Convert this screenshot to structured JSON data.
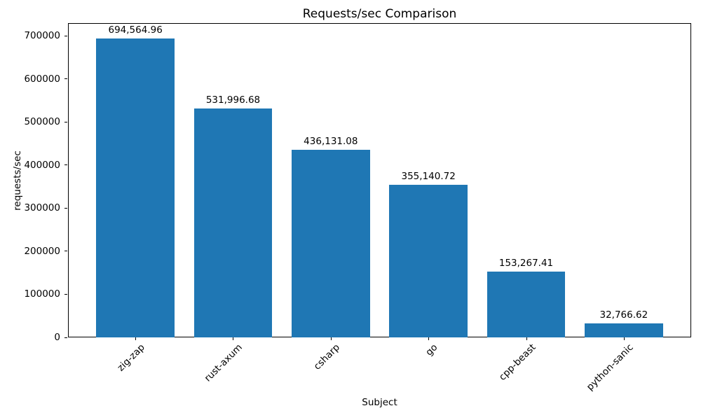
{
  "chart_data": {
    "type": "bar",
    "title": "Requests/sec Comparison",
    "xlabel": "Subject",
    "ylabel": "requests/sec",
    "categories": [
      "zig-zap",
      "rust-axum",
      "csharp",
      "go",
      "cpp-beast",
      "python-sanic"
    ],
    "values": [
      694564.96,
      531996.68,
      436131.08,
      355140.72,
      153267.41,
      32766.62
    ],
    "bar_labels": [
      "694,564.96",
      "531,996.68",
      "436,131.08",
      "355,140.72",
      "153,267.41",
      "32,766.62"
    ],
    "y_ticks": [
      0,
      100000,
      200000,
      300000,
      400000,
      500000,
      600000,
      700000
    ],
    "y_tick_labels": [
      "0",
      "100000",
      "200000",
      "300000",
      "400000",
      "500000",
      "600000",
      "700000"
    ],
    "ylim": [
      0,
      730000
    ],
    "bar_color": "#1f77b4",
    "spine_color": "#000000",
    "text_color": "#000000",
    "background_color": "#ffffff",
    "grid": false,
    "legend": "none",
    "x_tick_rotation": 45
  }
}
